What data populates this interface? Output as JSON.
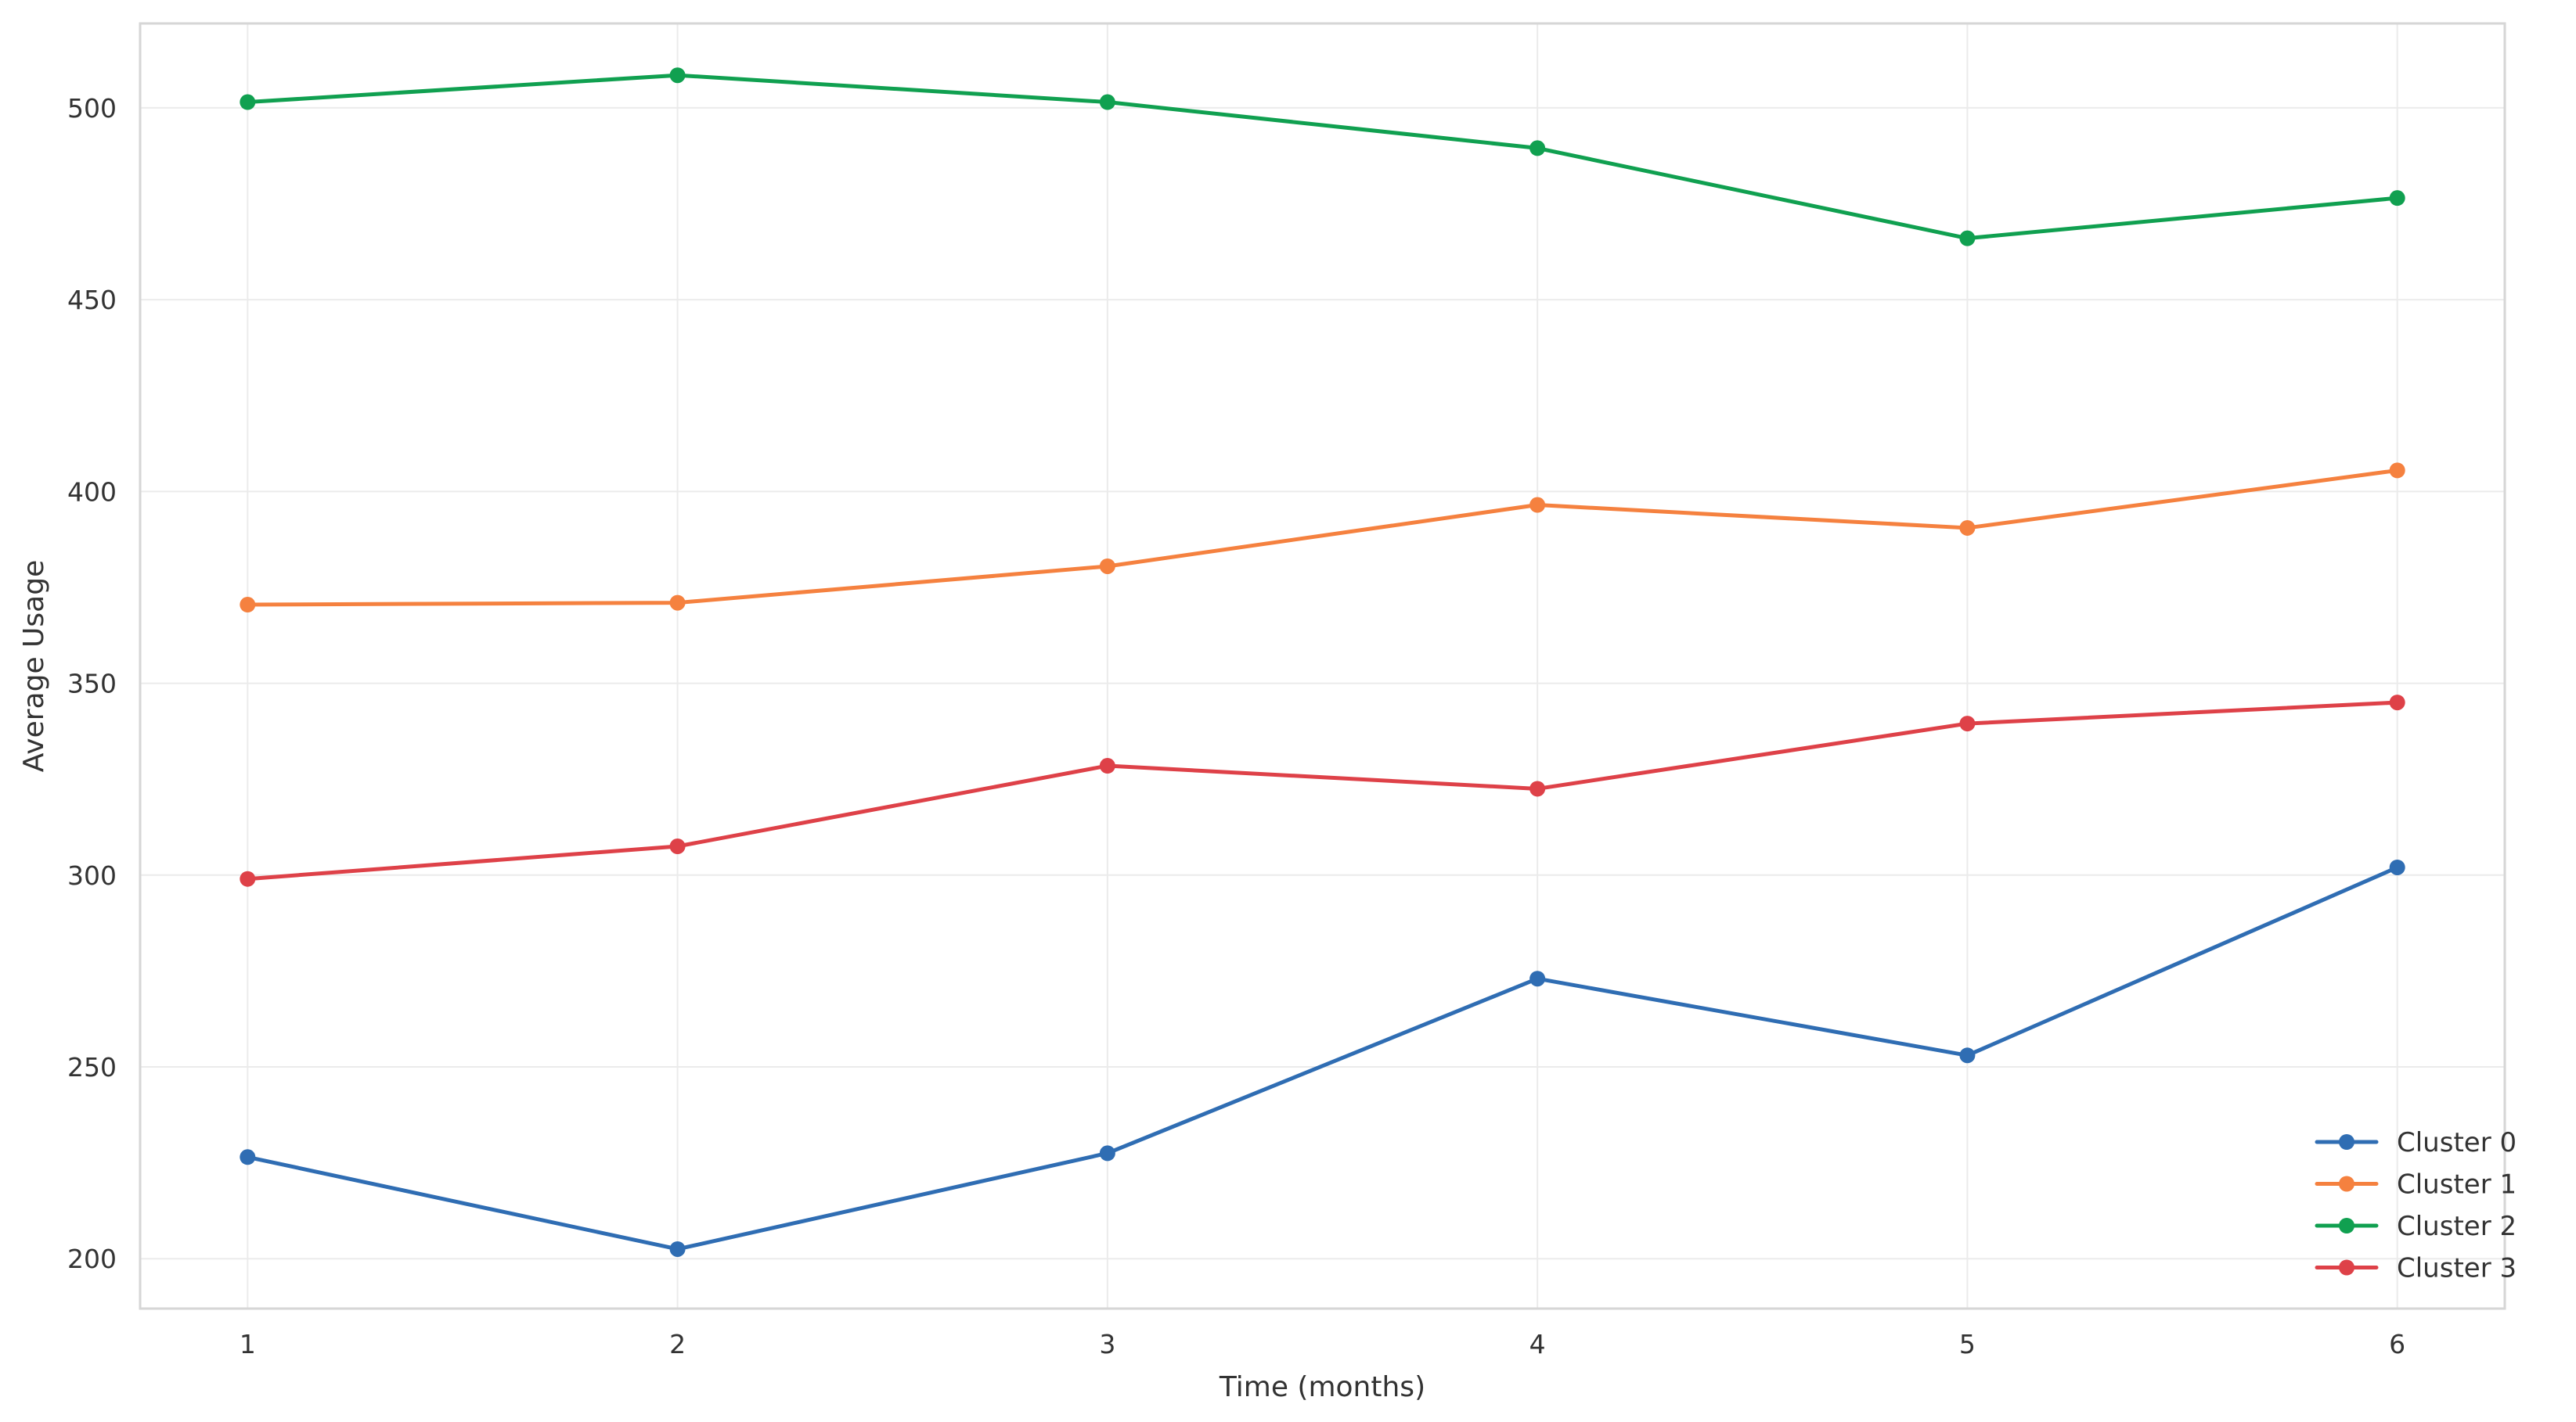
{
  "chart_data": {
    "type": "line",
    "title": "",
    "xlabel": "Time (months)",
    "ylabel": "Average Usage",
    "x": [
      1,
      2,
      3,
      4,
      5,
      6
    ],
    "x_ticks": [
      "1",
      "2",
      "3",
      "4",
      "5",
      "6"
    ],
    "y_ticks": [
      "200",
      "250",
      "300",
      "350",
      "400",
      "450",
      "500"
    ],
    "xlim": [
      0.75,
      6.25
    ],
    "ylim": [
      187,
      522
    ],
    "grid": true,
    "legend_position": "lower-right",
    "marker": "circle",
    "series": [
      {
        "name": "Cluster 0",
        "color": "#2f6db3",
        "values": [
          226.5,
          202.5,
          227.5,
          273.0,
          253.0,
          302.0
        ]
      },
      {
        "name": "Cluster 1",
        "color": "#f5813f",
        "values": [
          370.5,
          371.0,
          380.5,
          396.5,
          390.5,
          405.5
        ]
      },
      {
        "name": "Cluster 2",
        "color": "#10a050",
        "values": [
          501.5,
          508.5,
          501.5,
          489.5,
          466.0,
          476.5
        ]
      },
      {
        "name": "Cluster 3",
        "color": "#de4148",
        "values": [
          299.0,
          307.5,
          328.5,
          322.5,
          339.5,
          345.0
        ]
      }
    ]
  }
}
